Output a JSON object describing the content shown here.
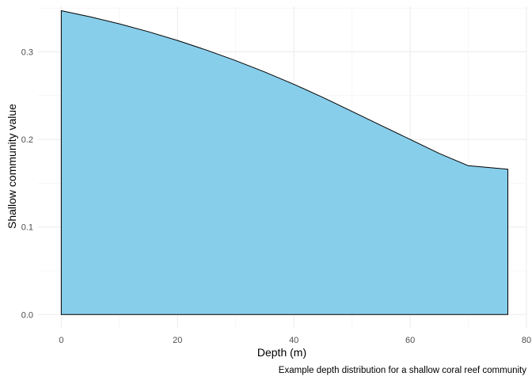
{
  "chart_data": {
    "type": "area",
    "xlabel": "Depth (m)",
    "ylabel": "Shallow community value",
    "caption": "Example depth distribution for a shallow coral reef community",
    "xlim": [
      -4,
      80
    ],
    "ylim": [
      -0.016,
      0.352
    ],
    "x_ticks": [
      0,
      20,
      40,
      60,
      80
    ],
    "x_tick_labels": [
      "0",
      "20",
      "40",
      "60",
      "80"
    ],
    "y_ticks": [
      0.0,
      0.1,
      0.2,
      0.3
    ],
    "y_tick_labels": [
      "0.0",
      "0.1",
      "0.2",
      "0.3"
    ],
    "grid": true,
    "fill_color": "#87CEEB",
    "line_color": "#000000",
    "x": [
      0,
      5,
      10,
      15,
      20,
      25,
      30,
      35,
      40,
      45,
      50,
      55,
      60,
      65,
      70,
      76.8
    ],
    "y": [
      0.347,
      0.34,
      0.332,
      0.323,
      0.313,
      0.302,
      0.29,
      0.277,
      0.263,
      0.248,
      0.232,
      0.216,
      0.2,
      0.184,
      0.17,
      0.166
    ]
  }
}
